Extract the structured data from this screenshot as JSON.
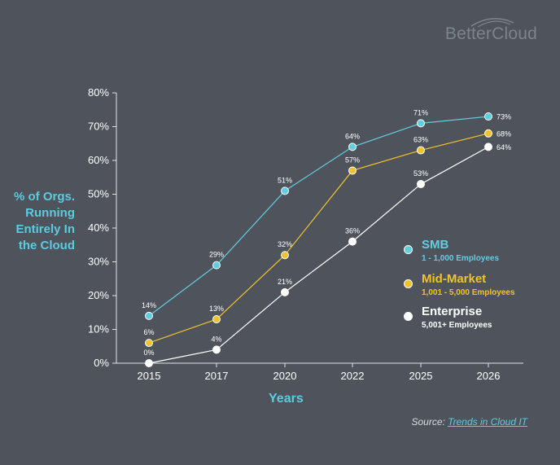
{
  "brand": "BetterCloud",
  "source": {
    "prefix": "Source: ",
    "link_text": "Trends in Cloud IT"
  },
  "legend": [
    {
      "name": "SMB",
      "sub": "1 - 1,000 Employees",
      "color": "#63cde0"
    },
    {
      "name": "Mid-Market",
      "sub": "1,001 - 5,000 Employees",
      "color": "#f0c22f"
    },
    {
      "name": "Enterprise",
      "sub": "5,001+ Employees",
      "color": "#ffffff"
    }
  ],
  "chart_data": {
    "type": "line",
    "xlabel": "Years",
    "ylabel": "% of Orgs. Running Entirely In the Cloud",
    "categories": [
      "2015",
      "2017",
      "2020",
      "2022",
      "2025",
      "2026"
    ],
    "y_ticks": [
      "0%",
      "10%",
      "20%",
      "30%",
      "40%",
      "50%",
      "60%",
      "70%",
      "80%"
    ],
    "ylim": [
      0,
      80
    ],
    "grid": false,
    "legend_position": "right",
    "series": [
      {
        "name": "SMB",
        "color": "#63cde0",
        "values": [
          14,
          29,
          51,
          64,
          71,
          73
        ],
        "labels": [
          "14%",
          "29%",
          "51%",
          "64%",
          "71%",
          "73%"
        ]
      },
      {
        "name": "Mid-Market",
        "color": "#f0c22f",
        "values": [
          6,
          13,
          32,
          57,
          63,
          68
        ],
        "labels": [
          "6%",
          "13%",
          "32%",
          "57%",
          "63%",
          "68%"
        ]
      },
      {
        "name": "Enterprise",
        "color": "#ffffff",
        "values": [
          0,
          4,
          21,
          36,
          53,
          64
        ],
        "labels": [
          "0%",
          "4%",
          "21%",
          "36%",
          "53%",
          "64%"
        ]
      }
    ]
  }
}
